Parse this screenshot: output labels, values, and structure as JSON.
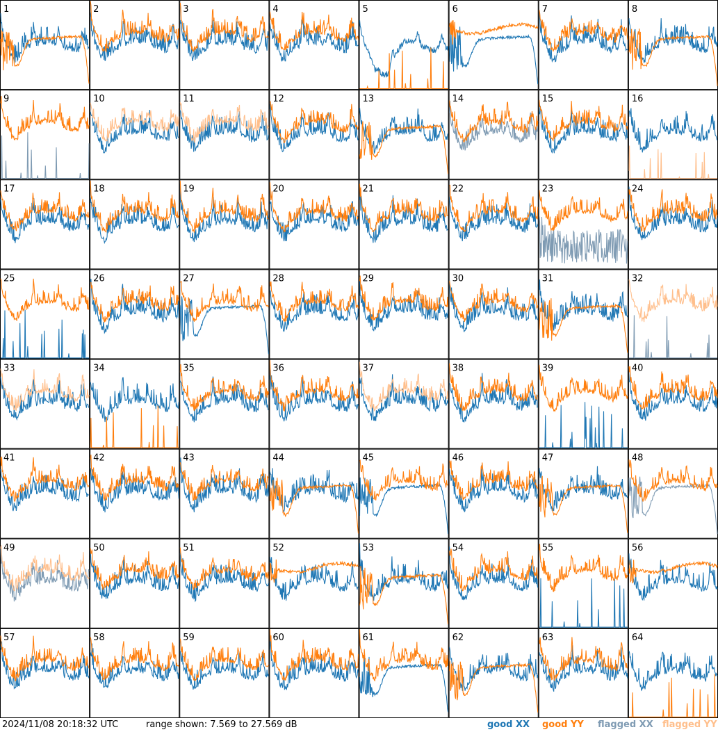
{
  "chart_data": {
    "type": "line",
    "panel_grid": {
      "rows": 8,
      "cols": 8
    },
    "title": "",
    "xlabel": "",
    "ylabel": "",
    "ylim": [
      7.569,
      27.569
    ],
    "grid": false,
    "legend_placement": "bottom-right",
    "series_styles": [
      {
        "name": "good XX",
        "color": "#1f77b4"
      },
      {
        "name": "good YY",
        "color": "#ff7f0e"
      },
      {
        "name": "flagged XX",
        "color": "#7f9bb3"
      },
      {
        "name": "flagged YY",
        "color": "#ffbf8c"
      }
    ],
    "panels": [
      {
        "label": "1",
        "xx": "good",
        "yy": "good",
        "xx_shape": "normal",
        "yy_shape": "dip_rolloff"
      },
      {
        "label": "2",
        "xx": "good",
        "yy": "good",
        "xx_shape": "normal",
        "yy_shape": "normal"
      },
      {
        "label": "3",
        "xx": "good",
        "yy": "good",
        "xx_shape": "normal",
        "yy_shape": "normal"
      },
      {
        "label": "4",
        "xx": "good",
        "yy": "good",
        "xx_shape": "normal",
        "yy_shape": "normal"
      },
      {
        "label": "5",
        "xx": "good",
        "yy": "good",
        "xx_shape": "dip",
        "yy_shape": "dead_spikes"
      },
      {
        "label": "6",
        "xx": "good",
        "yy": "good",
        "xx_shape": "dip_rolloff",
        "yy_shape": "flat_high"
      },
      {
        "label": "7",
        "xx": "good",
        "yy": "good",
        "xx_shape": "normal",
        "yy_shape": "normal"
      },
      {
        "label": "8",
        "xx": "good",
        "yy": "good",
        "xx_shape": "normal",
        "yy_shape": "dip_rolloff"
      },
      {
        "label": "9",
        "xx": "flagged",
        "yy": "good",
        "xx_shape": "dead_spikes",
        "yy_shape": "normal"
      },
      {
        "label": "10",
        "xx": "good",
        "yy": "flagged",
        "xx_shape": "normal",
        "yy_shape": "normal"
      },
      {
        "label": "11",
        "xx": "good",
        "yy": "flagged",
        "xx_shape": "normal",
        "yy_shape": "normal"
      },
      {
        "label": "12",
        "xx": "good",
        "yy": "good",
        "xx_shape": "normal",
        "yy_shape": "normal"
      },
      {
        "label": "13",
        "xx": "good",
        "yy": "good",
        "xx_shape": "normal",
        "yy_shape": "dip_rolloff"
      },
      {
        "label": "14",
        "xx": "flagged",
        "yy": "good",
        "xx_shape": "normal",
        "yy_shape": "normal"
      },
      {
        "label": "15",
        "xx": "good",
        "yy": "good",
        "xx_shape": "normal",
        "yy_shape": "normal"
      },
      {
        "label": "16",
        "xx": "good",
        "yy": "flagged",
        "xx_shape": "normal",
        "yy_shape": "dead_spikes"
      },
      {
        "label": "17",
        "xx": "good",
        "yy": "good",
        "xx_shape": "normal",
        "yy_shape": "normal"
      },
      {
        "label": "18",
        "xx": "good",
        "yy": "good",
        "xx_shape": "normal",
        "yy_shape": "normal"
      },
      {
        "label": "19",
        "xx": "good",
        "yy": "good",
        "xx_shape": "normal",
        "yy_shape": "normal"
      },
      {
        "label": "20",
        "xx": "good",
        "yy": "good",
        "xx_shape": "normal",
        "yy_shape": "normal"
      },
      {
        "label": "21",
        "xx": "good",
        "yy": "good",
        "xx_shape": "normal",
        "yy_shape": "normal"
      },
      {
        "label": "22",
        "xx": "good",
        "yy": "good",
        "xx_shape": "normal",
        "yy_shape": "normal"
      },
      {
        "label": "23",
        "xx": "flagged",
        "yy": "good",
        "xx_shape": "noisy_low",
        "yy_shape": "normal"
      },
      {
        "label": "24",
        "xx": "good",
        "yy": "good",
        "xx_shape": "normal",
        "yy_shape": "normal"
      },
      {
        "label": "25",
        "xx": "good",
        "yy": "good",
        "xx_shape": "dead_spikes",
        "yy_shape": "normal"
      },
      {
        "label": "26",
        "xx": "good",
        "yy": "good",
        "xx_shape": "normal",
        "yy_shape": "normal"
      },
      {
        "label": "27",
        "xx": "good",
        "yy": "good",
        "xx_shape": "dip_rolloff",
        "yy_shape": "normal"
      },
      {
        "label": "28",
        "xx": "good",
        "yy": "good",
        "xx_shape": "normal",
        "yy_shape": "normal"
      },
      {
        "label": "29",
        "xx": "good",
        "yy": "good",
        "xx_shape": "normal",
        "yy_shape": "normal"
      },
      {
        "label": "30",
        "xx": "good",
        "yy": "good",
        "xx_shape": "normal",
        "yy_shape": "normal"
      },
      {
        "label": "31",
        "xx": "good",
        "yy": "good",
        "xx_shape": "normal",
        "yy_shape": "dip_rolloff"
      },
      {
        "label": "32",
        "xx": "flagged",
        "yy": "flagged",
        "xx_shape": "dead_spikes",
        "yy_shape": "normal"
      },
      {
        "label": "33",
        "xx": "good",
        "yy": "flagged",
        "xx_shape": "normal",
        "yy_shape": "normal"
      },
      {
        "label": "34",
        "xx": "good",
        "yy": "good",
        "xx_shape": "normal",
        "yy_shape": "dead_spikes"
      },
      {
        "label": "35",
        "xx": "good",
        "yy": "good",
        "xx_shape": "normal",
        "yy_shape": "normal"
      },
      {
        "label": "36",
        "xx": "good",
        "yy": "good",
        "xx_shape": "normal",
        "yy_shape": "normal"
      },
      {
        "label": "37",
        "xx": "good",
        "yy": "flagged",
        "xx_shape": "normal",
        "yy_shape": "normal"
      },
      {
        "label": "38",
        "xx": "good",
        "yy": "good",
        "xx_shape": "normal",
        "yy_shape": "normal"
      },
      {
        "label": "39",
        "xx": "good",
        "yy": "good",
        "xx_shape": "dead_spikes",
        "yy_shape": "normal"
      },
      {
        "label": "40",
        "xx": "good",
        "yy": "good",
        "xx_shape": "normal",
        "yy_shape": "normal"
      },
      {
        "label": "41",
        "xx": "good",
        "yy": "good",
        "xx_shape": "normal",
        "yy_shape": "normal"
      },
      {
        "label": "42",
        "xx": "good",
        "yy": "good",
        "xx_shape": "normal",
        "yy_shape": "normal"
      },
      {
        "label": "43",
        "xx": "good",
        "yy": "good",
        "xx_shape": "normal",
        "yy_shape": "normal"
      },
      {
        "label": "44",
        "xx": "good",
        "yy": "good",
        "xx_shape": "normal",
        "yy_shape": "dip_rolloff"
      },
      {
        "label": "45",
        "xx": "good",
        "yy": "good",
        "xx_shape": "dip_rolloff",
        "yy_shape": "normal"
      },
      {
        "label": "46",
        "xx": "good",
        "yy": "good",
        "xx_shape": "normal",
        "yy_shape": "normal"
      },
      {
        "label": "47",
        "xx": "good",
        "yy": "good",
        "xx_shape": "normal",
        "yy_shape": "dip_rolloff"
      },
      {
        "label": "48",
        "xx": "flagged",
        "yy": "good",
        "xx_shape": "dip_rolloff",
        "yy_shape": "normal"
      },
      {
        "label": "49",
        "xx": "flagged",
        "yy": "flagged",
        "xx_shape": "normal",
        "yy_shape": "normal"
      },
      {
        "label": "50",
        "xx": "good",
        "yy": "good",
        "xx_shape": "normal",
        "yy_shape": "normal"
      },
      {
        "label": "51",
        "xx": "good",
        "yy": "good",
        "xx_shape": "normal",
        "yy_shape": "normal"
      },
      {
        "label": "52",
        "xx": "good",
        "yy": "good",
        "xx_shape": "normal",
        "yy_shape": "flat_high"
      },
      {
        "label": "53",
        "xx": "good",
        "yy": "good",
        "xx_shape": "normal",
        "yy_shape": "dip_rolloff"
      },
      {
        "label": "54",
        "xx": "good",
        "yy": "good",
        "xx_shape": "normal",
        "yy_shape": "normal"
      },
      {
        "label": "55",
        "xx": "good",
        "yy": "good",
        "xx_shape": "dead_spikes",
        "yy_shape": "normal"
      },
      {
        "label": "56",
        "xx": "good",
        "yy": "good",
        "xx_shape": "normal",
        "yy_shape": "flat_high"
      },
      {
        "label": "57",
        "xx": "good",
        "yy": "good",
        "xx_shape": "normal",
        "yy_shape": "normal"
      },
      {
        "label": "58",
        "xx": "good",
        "yy": "good",
        "xx_shape": "normal",
        "yy_shape": "normal"
      },
      {
        "label": "59",
        "xx": "good",
        "yy": "good",
        "xx_shape": "normal",
        "yy_shape": "normal"
      },
      {
        "label": "60",
        "xx": "good",
        "yy": "good",
        "xx_shape": "normal",
        "yy_shape": "normal"
      },
      {
        "label": "61",
        "xx": "good",
        "yy": "good",
        "xx_shape": "dip_rolloff",
        "yy_shape": "normal"
      },
      {
        "label": "62",
        "xx": "good",
        "yy": "good",
        "xx_shape": "normal",
        "yy_shape": "dip_rolloff"
      },
      {
        "label": "63",
        "xx": "good",
        "yy": "good",
        "xx_shape": "normal",
        "yy_shape": "normal"
      },
      {
        "label": "64",
        "xx": "good",
        "yy": "good",
        "xx_shape": "normal",
        "yy_shape": "dead_spikes"
      }
    ]
  },
  "footer": {
    "timestamp": "2024/11/08 20:18:32 UTC",
    "range_text": "range shown: 7.569 to 27.569 dB"
  },
  "legend": {
    "good_xx": "good XX",
    "good_yy": "good YY",
    "flagged_xx": "flagged XX",
    "flagged_yy": "flagged YY"
  }
}
